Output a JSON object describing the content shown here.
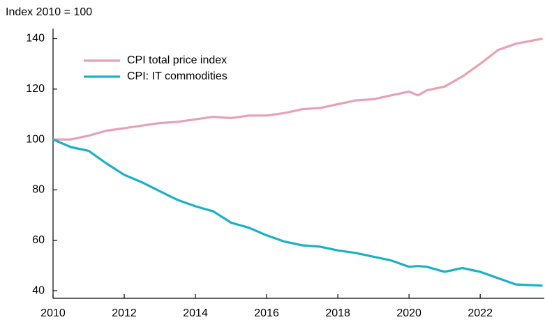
{
  "chart_data": {
    "type": "line",
    "title": "Index 2010 = 100",
    "x": [
      2010,
      2010.5,
      2011,
      2011.5,
      2012,
      2012.5,
      2013,
      2013.5,
      2014,
      2014.5,
      2015,
      2015.5,
      2016,
      2016.5,
      2017,
      2017.5,
      2018,
      2018.5,
      2019,
      2019.5,
      2020,
      2020.25,
      2020.5,
      2021,
      2021.5,
      2022,
      2022.5,
      2023,
      2023.75
    ],
    "series": [
      {
        "name": "CPI total price index",
        "color": "#e8a0b4",
        "values": [
          100,
          100,
          101.5,
          103.5,
          104.5,
          105.5,
          106.5,
          107,
          108,
          109,
          108.5,
          109.5,
          109.5,
          110.5,
          112,
          112.5,
          114,
          115.5,
          116,
          117.5,
          119,
          117.5,
          119.5,
          121,
          125,
          130,
          135.5,
          138,
          140
        ]
      },
      {
        "name": "CPI: IT commodities",
        "color": "#1ab0c8",
        "values": [
          100,
          97,
          95.5,
          90.5,
          86,
          83,
          79.5,
          76,
          73.5,
          71.5,
          67,
          65,
          62,
          59.5,
          58,
          57.5,
          56,
          55,
          53.5,
          52,
          49.5,
          49.8,
          49.5,
          47.5,
          49,
          47.5,
          45,
          42.5,
          42
        ]
      }
    ],
    "xlim": [
      2010,
      2023.8
    ],
    "xticks": [
      2010,
      2012,
      2014,
      2016,
      2018,
      2020,
      2022
    ],
    "ylim": [
      37,
      144
    ],
    "yticks": [
      40,
      60,
      80,
      100,
      120,
      140
    ],
    "grid": false,
    "legend": "upper left"
  }
}
